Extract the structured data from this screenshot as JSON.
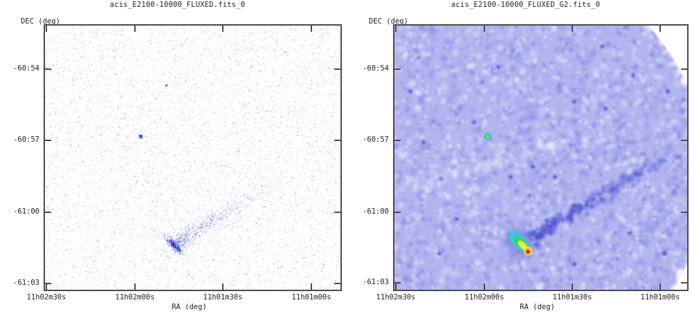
{
  "figure": {
    "background": "#ffffff",
    "frame_color": "#4a4a4a",
    "text_color": "#1e1e1e"
  },
  "panels": [
    {
      "title": "acis_E2100-10000_FLUXED.fits_0",
      "y_axis_title": "DEC (deg)",
      "x_axis_title": "RA (deg)",
      "x_ticks": [
        "11h02m30s",
        "11h02m00s",
        "11h01m30s",
        "11h01m00s"
      ],
      "y_ticks": [
        "-60:54",
        "-60:57",
        "-61:00",
        "-61:03"
      ],
      "rendering": "unsmoothed counts image: sparse blue photon speckle on white",
      "palette": {
        "speckle": "#8286e2",
        "speckle_dark": "#595ed2",
        "trail": "#4a4fcd",
        "source_dense": "#3339c0",
        "source_core_cyan": "#1ec9dd",
        "source_core_green": "#2abf3e",
        "secondary_blue": "#3350cc"
      }
    },
    {
      "title": "acis_E2100-10000_FLUXED_G2.fits_0",
      "y_axis_title": "DEC (deg)",
      "x_axis_title": "RA (deg)",
      "x_ticks": [
        "11h02m30s",
        "11h02m00s",
        "11h01m30s",
        "11h01m00s"
      ],
      "y_ticks": [
        "-60:54",
        "-60:57",
        "-61:00",
        "-61:03"
      ],
      "rendering": "Gaussian-smoothed (G2) image: mottled blue field, bright source in rainbow scale, white outside circular FOV",
      "palette": {
        "base": "#b2b5ee",
        "deep_blue": "#3a3ec6",
        "cyan": "#35c8ec",
        "green": "#3ed257",
        "yellow": "#e9ec3c",
        "orange": "#f59a1e",
        "red": "#e43312"
      }
    }
  ],
  "chart_data": [
    {
      "type": "heatmap",
      "title": "acis_E2100-10000_FLUXED.fits_0",
      "xlabel": "RA (deg)",
      "ylabel": "DEC (deg)",
      "x_tick_labels": [
        "11h02m30s",
        "11h02m00s",
        "11h01m30s",
        "11h01m00s"
      ],
      "y_tick_labels": [
        "-60:54",
        "-60:57",
        "-61:00",
        "-61:03"
      ],
      "x_range_approx": [
        "11h02m32s",
        "11h00m50s"
      ],
      "y_range_approx": [
        "-60:52",
        "-61:03.4"
      ],
      "colormap": "white -> light blue -> blue -> cyan/green (low -> high)",
      "grid": false,
      "legend": false,
      "features": [
        {
          "name": "bright cometary source",
          "ra": "11h01m47s",
          "dec": "-61:01:20",
          "note": "elongated NW-SE clump of counts with cyan and green core pixels"
        },
        {
          "name": "point source",
          "ra": "11h01m58s",
          "dec": "-60:56:50",
          "note": "compact blue clump with cyan center"
        },
        {
          "name": "faint point source",
          "ra": "11h01m53s",
          "dec": "-60:53:30"
        },
        {
          "name": "diffuse trail",
          "note": "faint band of counts extending NE from bright source toward ~11h01m10s / -60:59"
        }
      ]
    },
    {
      "type": "heatmap",
      "title": "acis_E2100-10000_FLUXED_G2.fits_0",
      "xlabel": "RA (deg)",
      "ylabel": "DEC (deg)",
      "x_tick_labels": [
        "11h02m30s",
        "11h02m00s",
        "11h01m30s",
        "11h01m00s"
      ],
      "y_tick_labels": [
        "-60:54",
        "-60:57",
        "-61:00",
        "-61:03"
      ],
      "x_range_approx": [
        "11h02m32s",
        "11h00m50s"
      ],
      "y_range_approx": [
        "-60:52",
        "-61:03.4"
      ],
      "colormap": "white -> blue -> cyan -> green -> yellow -> red (low -> high)",
      "grid": false,
      "legend": false,
      "features": [
        {
          "name": "bright cometary source",
          "ra": "11h01m47s",
          "dec": "-61:01:20",
          "note": "cyan->green->yellow elongated tail with compact red-orange head"
        },
        {
          "name": "point source",
          "ra": "11h01m58s",
          "dec": "-60:56:50",
          "note": "cyan ring with green/yellow center"
        },
        {
          "name": "diffuse trail",
          "note": "dark blue band running NE from the bright source"
        },
        {
          "name": "detector chip gap",
          "note": "faint white diagonal band near -60:57 on the west side"
        },
        {
          "name": "field-of-view edge",
          "note": "white regions beyond circular FOV at NE and SE corners"
        }
      ]
    }
  ]
}
